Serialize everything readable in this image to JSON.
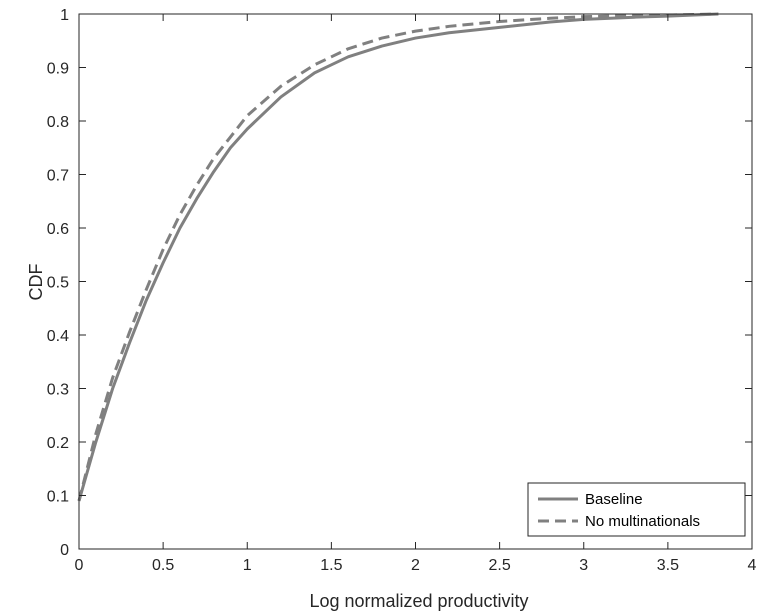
{
  "chart_data": {
    "type": "line",
    "xlabel": "Log normalized productivity",
    "ylabel": "CDF",
    "xlim": [
      0,
      4
    ],
    "ylim": [
      0,
      1
    ],
    "x_ticks": [
      "0",
      "0.5",
      "1",
      "1.5",
      "2",
      "2.5",
      "3",
      "3.5",
      "4"
    ],
    "y_ticks": [
      "0",
      "0.1",
      "0.2",
      "0.3",
      "0.4",
      "0.5",
      "0.6",
      "0.7",
      "0.8",
      "0.9",
      "1"
    ],
    "grid": false,
    "legend_position": "bottom-right",
    "line_color": "#808080",
    "series": [
      {
        "name": "Baseline",
        "style": "solid",
        "x": [
          0,
          0.1,
          0.2,
          0.3,
          0.4,
          0.5,
          0.6,
          0.7,
          0.8,
          0.9,
          1.0,
          1.2,
          1.4,
          1.5,
          1.6,
          1.8,
          2.0,
          2.2,
          2.5,
          2.8,
          3.0,
          3.3,
          3.5,
          3.8
        ],
        "y": [
          0.09,
          0.2,
          0.3,
          0.385,
          0.465,
          0.535,
          0.6,
          0.655,
          0.705,
          0.75,
          0.785,
          0.845,
          0.89,
          0.905,
          0.92,
          0.94,
          0.955,
          0.965,
          0.975,
          0.985,
          0.99,
          0.994,
          0.996,
          1.0
        ]
      },
      {
        "name": "No multinationals",
        "style": "dashed",
        "x": [
          0,
          0.1,
          0.2,
          0.3,
          0.4,
          0.5,
          0.6,
          0.7,
          0.8,
          0.9,
          1.0,
          1.2,
          1.4,
          1.5,
          1.6,
          1.8,
          2.0,
          2.2,
          2.5,
          2.8,
          3.0,
          3.3,
          3.5,
          3.8
        ],
        "y": [
          0.09,
          0.215,
          0.32,
          0.405,
          0.485,
          0.56,
          0.625,
          0.68,
          0.73,
          0.77,
          0.81,
          0.865,
          0.905,
          0.92,
          0.935,
          0.955,
          0.968,
          0.977,
          0.986,
          0.992,
          0.995,
          0.997,
          0.998,
          1.0
        ]
      }
    ]
  }
}
